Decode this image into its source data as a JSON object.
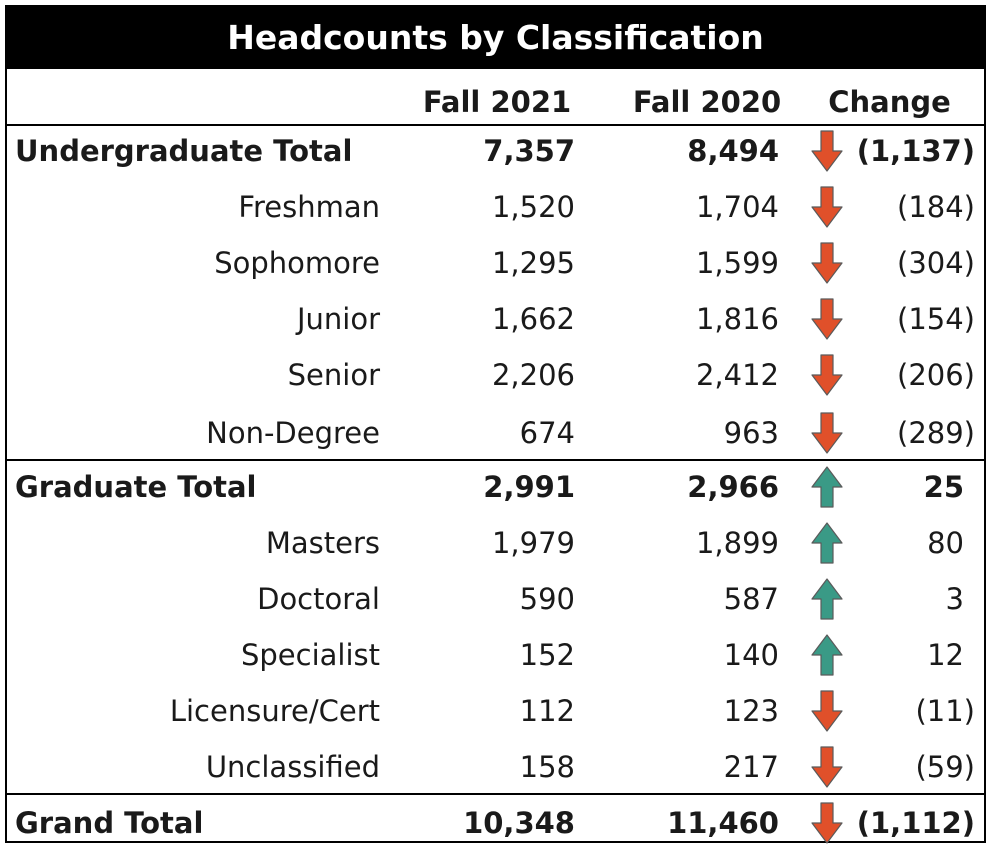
{
  "title": "Headcounts by Classification",
  "colors": {
    "title_bg": "#000000",
    "title_fg": "#ffffff",
    "down_arrow": "#e0502a",
    "up_arrow": "#3a9a86"
  },
  "chart_data": {
    "type": "table",
    "title": "Headcounts by Classification",
    "columns": [
      "",
      "Fall 2021",
      "Fall 2020",
      "Change"
    ],
    "rows": [
      {
        "label": "Undergraduate Total",
        "fall_2021": "7,357",
        "fall_2020": "8,494",
        "direction": "down",
        "change": "(1,137)",
        "level": "total"
      },
      {
        "label": "Freshman",
        "fall_2021": "1,520",
        "fall_2020": "1,704",
        "direction": "down",
        "change": "(184)",
        "level": "sub"
      },
      {
        "label": "Sophomore",
        "fall_2021": "1,295",
        "fall_2020": "1,599",
        "direction": "down",
        "change": "(304)",
        "level": "sub"
      },
      {
        "label": "Junior",
        "fall_2021": "1,662",
        "fall_2020": "1,816",
        "direction": "down",
        "change": "(154)",
        "level": "sub"
      },
      {
        "label": "Senior",
        "fall_2021": "2,206",
        "fall_2020": "2,412",
        "direction": "down",
        "change": "(206)",
        "level": "sub"
      },
      {
        "label": "Non-Degree",
        "fall_2021": "674",
        "fall_2020": "963",
        "direction": "down",
        "change": "(289)",
        "level": "sub"
      },
      {
        "label": "Graduate Total",
        "fall_2021": "2,991",
        "fall_2020": "2,966",
        "direction": "up",
        "change": "25",
        "level": "total"
      },
      {
        "label": "Masters",
        "fall_2021": "1,979",
        "fall_2020": "1,899",
        "direction": "up",
        "change": "80",
        "level": "sub"
      },
      {
        "label": "Doctoral",
        "fall_2021": "590",
        "fall_2020": "587",
        "direction": "up",
        "change": "3",
        "level": "sub"
      },
      {
        "label": "Specialist",
        "fall_2021": "152",
        "fall_2020": "140",
        "direction": "up",
        "change": "12",
        "level": "sub"
      },
      {
        "label": "Licensure/Cert",
        "fall_2021": "112",
        "fall_2020": "123",
        "direction": "down",
        "change": "(11)",
        "level": "sub"
      },
      {
        "label": "Unclassified",
        "fall_2021": "158",
        "fall_2020": "217",
        "direction": "down",
        "change": "(59)",
        "level": "sub"
      },
      {
        "label": "Grand Total",
        "fall_2021": "10,348",
        "fall_2020": "11,460",
        "direction": "down",
        "change": "(1,112)",
        "level": "total"
      }
    ]
  }
}
